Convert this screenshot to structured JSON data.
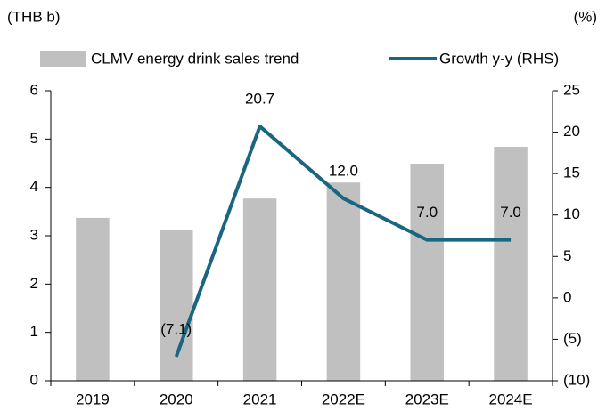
{
  "chart_data": {
    "type": "bar-line",
    "y_label": "(THB b)",
    "y2_label": "(%)",
    "categories": [
      "2019",
      "2020",
      "2021",
      "2022E",
      "2023E",
      "2024E"
    ],
    "series": [
      {
        "name": "CLMV energy drink sales trend",
        "type": "bar",
        "color": "#c0c0c0",
        "values": [
          3.37,
          3.13,
          3.77,
          4.1,
          4.49,
          4.84
        ]
      },
      {
        "name": "Growth y-y (RHS)",
        "type": "line",
        "axis": "y2",
        "color": "#1a6680",
        "values": [
          null,
          -7.1,
          20.7,
          12.0,
          7.0,
          7.0
        ],
        "value_labels": [
          null,
          "(7.1)",
          "20.7",
          "12.0",
          "7.0",
          "7.0"
        ]
      }
    ],
    "ylim": [
      0,
      6
    ],
    "yticks": [
      0,
      1,
      2,
      3,
      4,
      5,
      6
    ],
    "y2lim": [
      -10,
      25
    ],
    "y2ticks": [
      {
        "value": -10,
        "label": "(10)"
      },
      {
        "value": -5,
        "label": "(5)"
      },
      0,
      5,
      10,
      15,
      20,
      25
    ]
  }
}
